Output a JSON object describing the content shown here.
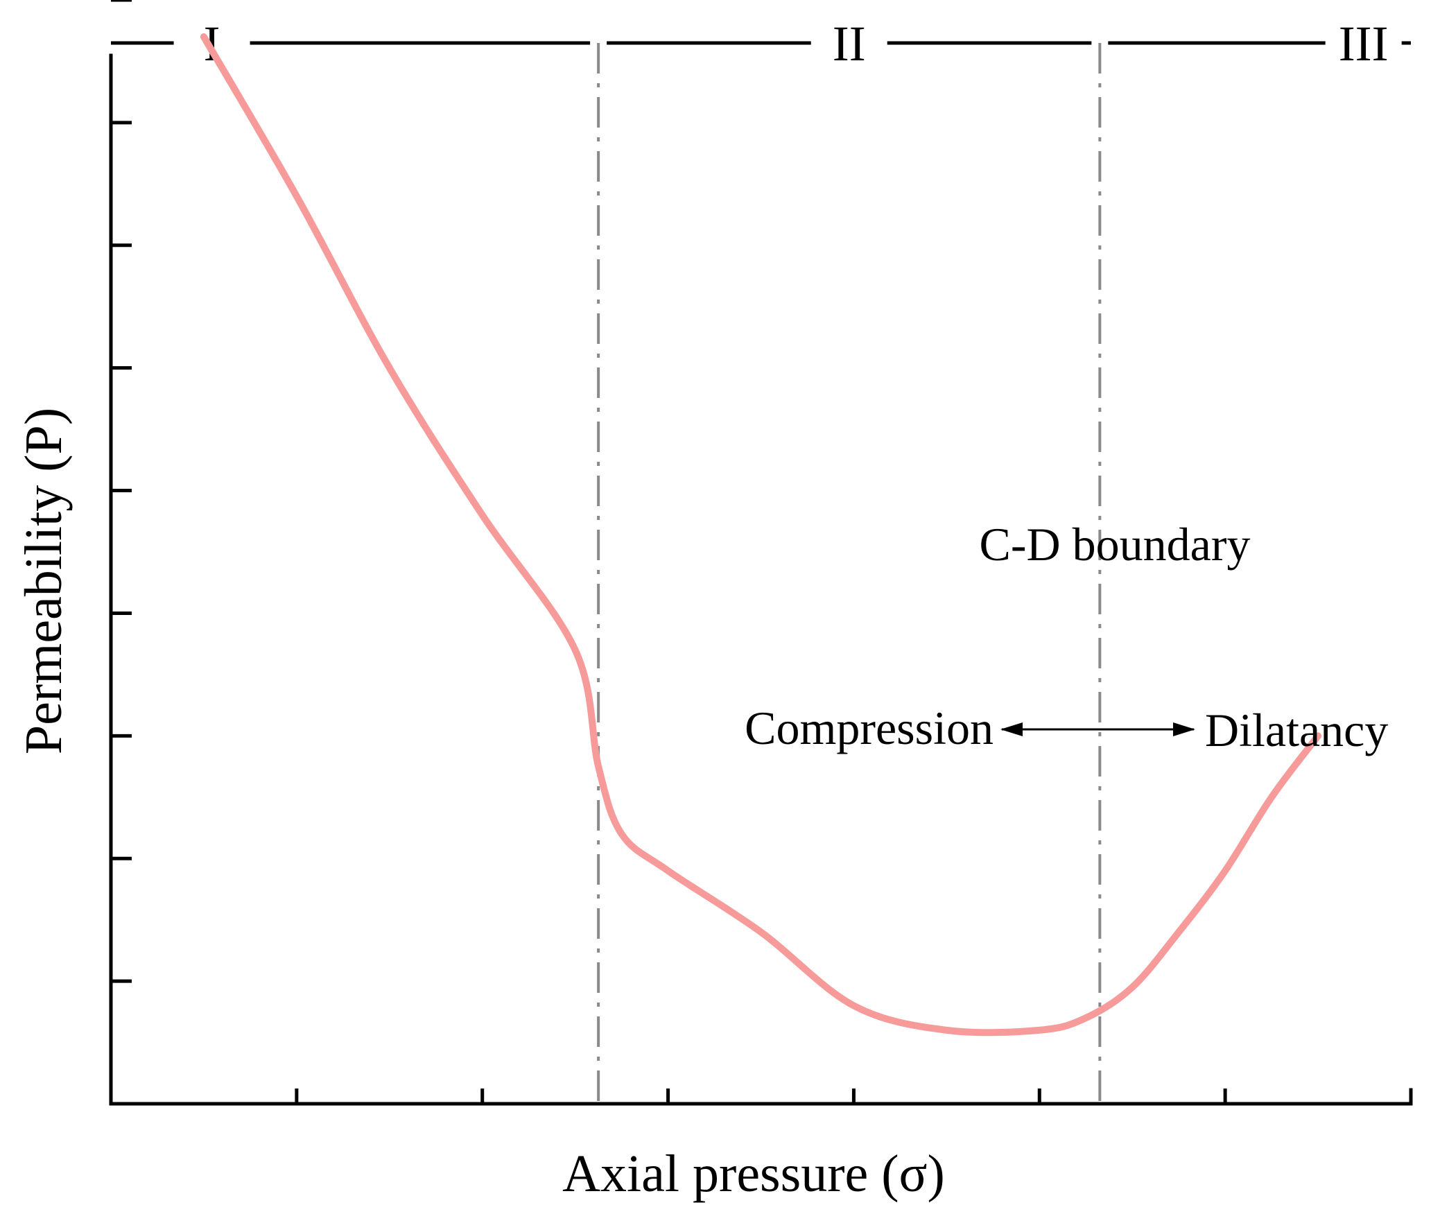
{
  "chart_data": {
    "type": "line",
    "xlabel": "Axial pressure (σ)",
    "ylabel": "Permeability (P)",
    "xlim": [
      0,
      14
    ],
    "ylim": [
      0,
      9
    ],
    "x_ticks": [
      2,
      4,
      6,
      8,
      10,
      12
    ],
    "y_ticks": [
      1,
      2,
      3,
      4,
      5,
      6,
      7,
      8,
      9
    ],
    "grid": false,
    "tick_labels_shown": false,
    "series": [
      {
        "color": "#f79a9a",
        "x": [
          1.0,
          2.0,
          3.0,
          4.0,
          5.0,
          5.25,
          5.5,
          6.0,
          7.0,
          8.0,
          9.0,
          10.0,
          10.5,
          11.0,
          11.5,
          12.0,
          12.5,
          13.0
        ],
        "y": [
          8.7,
          7.4,
          6.0,
          4.8,
          3.7,
          2.75,
          2.2,
          1.9,
          1.4,
          0.8,
          0.6,
          0.6,
          0.7,
          0.95,
          1.4,
          1.9,
          2.5,
          3.0
        ]
      }
    ],
    "boundaries": [
      {
        "x": 5.25,
        "style": "dash-dot"
      },
      {
        "x": 10.65,
        "style": "dash-dot",
        "label": "C-D boundary"
      }
    ],
    "stages": [
      {
        "label": "I"
      },
      {
        "label": "II"
      },
      {
        "label": "III"
      }
    ],
    "annotations": {
      "left": "Compression",
      "right": "Dilatancy"
    }
  }
}
